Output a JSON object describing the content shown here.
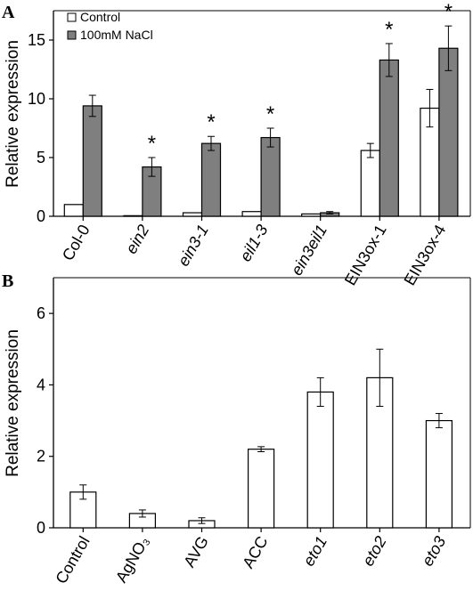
{
  "chart_data": [
    {
      "panel": "A",
      "type": "bar",
      "ylabel": "Relative expression",
      "ylim": [
        0,
        17.5
      ],
      "yticks": [
        "0",
        "5",
        "10",
        "15"
      ],
      "categories": [
        "Col-0",
        "ein2",
        "ein3-1",
        "eil1-3",
        "ein3eil1",
        "EIN3ox-1",
        "EIN3ox-4"
      ],
      "category_italic": [
        false,
        true,
        true,
        true,
        true,
        false,
        false
      ],
      "series": [
        {
          "name": "Control",
          "color": "#ffffff",
          "values": [
            1.0,
            0.05,
            0.3,
            0.4,
            0.2,
            5.6,
            9.2
          ],
          "errors": [
            0.0,
            0.0,
            0.0,
            0.0,
            0.0,
            0.6,
            1.6
          ]
        },
        {
          "name": "100mM NaCl",
          "color": "#7f7f7f",
          "values": [
            9.4,
            4.2,
            6.2,
            6.7,
            0.3,
            13.3,
            14.3
          ],
          "errors": [
            0.9,
            0.8,
            0.6,
            0.8,
            0.1,
            1.4,
            1.9
          ]
        }
      ],
      "significance": [
        "",
        "*",
        "*",
        "*",
        "",
        "*",
        "*"
      ],
      "legend": {
        "placement": "top-left",
        "entries": [
          "Control",
          "100mM NaCl"
        ]
      }
    },
    {
      "panel": "B",
      "type": "bar",
      "ylabel": "Relative expression",
      "ylim": [
        0,
        7
      ],
      "yticks": [
        "0",
        "2",
        "4",
        "6"
      ],
      "categories": [
        "Control",
        "AgNO₃",
        "AVG",
        "ACC",
        "eto1",
        "eto2",
        "eto3"
      ],
      "category_italic": [
        false,
        false,
        false,
        false,
        true,
        true,
        true
      ],
      "series": [
        {
          "name": "",
          "color": "#ffffff",
          "values": [
            1.0,
            0.4,
            0.2,
            2.2,
            3.8,
            4.2,
            3.0
          ],
          "errors": [
            0.2,
            0.1,
            0.08,
            0.07,
            0.4,
            0.8,
            0.2
          ]
        }
      ]
    }
  ]
}
